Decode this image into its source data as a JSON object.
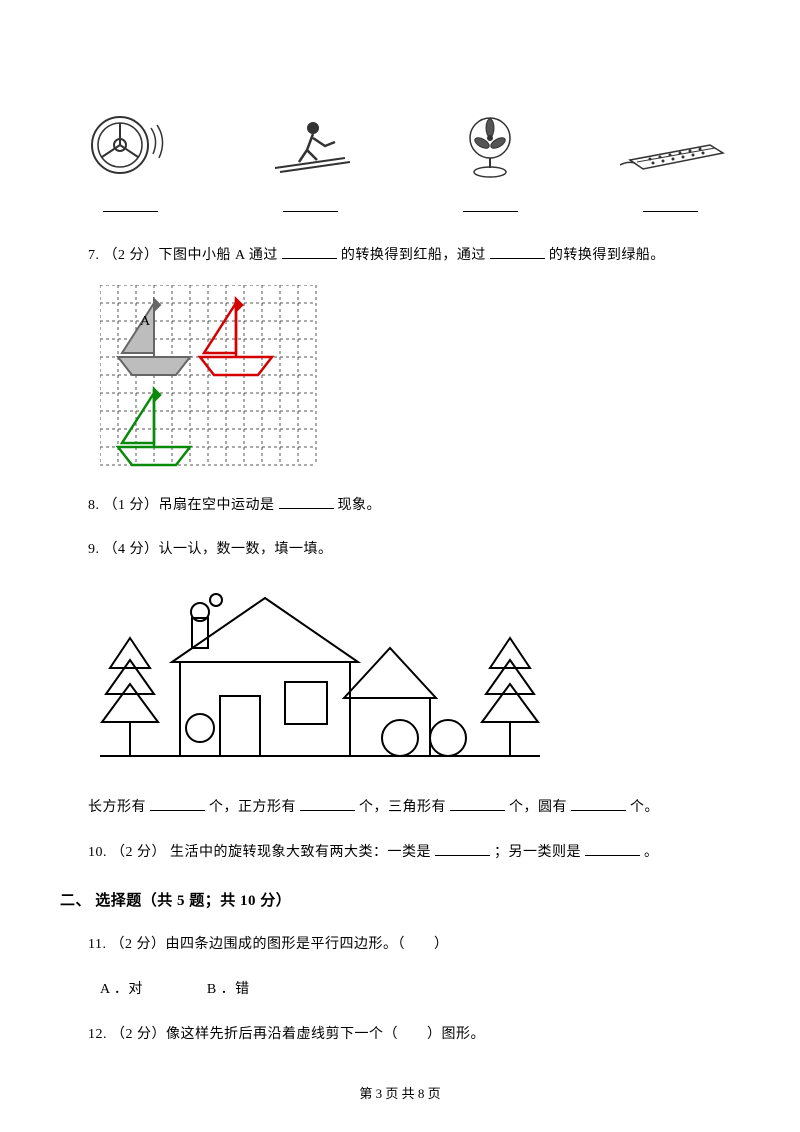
{
  "image_labels": [
    "",
    "",
    "",
    ""
  ],
  "q7": {
    "prefix": "7. （2 分）下图中小船 A 通过",
    "mid": "的转换得到红船，通过",
    "suffix": "的转换得到绿船。"
  },
  "boat_grid": {
    "rows": 10,
    "cols": 12,
    "cell": 18,
    "dash_color": "#555555",
    "boat_gray_fill": "#bdbdbd",
    "boat_gray_stroke": "#666666",
    "boat_red": "#d40000",
    "boat_green": "#0a8a0a",
    "label_A": "A"
  },
  "q8": {
    "prefix": "8. （1 分）吊扇在空中运动是",
    "suffix": " 现象。"
  },
  "q9": {
    "text": "9. （4 分）认一认，数一数，填一填。"
  },
  "house": {
    "stroke": "#000000",
    "stroke_width": 2,
    "tree_tiers": 3
  },
  "q9_fill": {
    "a": "长方形有",
    "b": "个，正方形有",
    "c": "个，三角形有",
    "d": "个，圆有",
    "e": "个。"
  },
  "q10": {
    "prefix": "10. （2 分） 生活中的旋转现象大致有两大类：一类是",
    "mid": "；另一类则是",
    "suffix": "。"
  },
  "section2": "二、 选择题（共 5 题；共 10 分）",
  "q11": {
    "text": "11. （2 分）由四条边围成的图形是平行四边形。（　　）",
    "optA": "A ．对",
    "optB": "B ．错"
  },
  "q12": {
    "text": "12. （2 分）像这样先折后再沿着虚线剪下一个（　　）图形。"
  },
  "footer": "第 3 页 共 8 页"
}
